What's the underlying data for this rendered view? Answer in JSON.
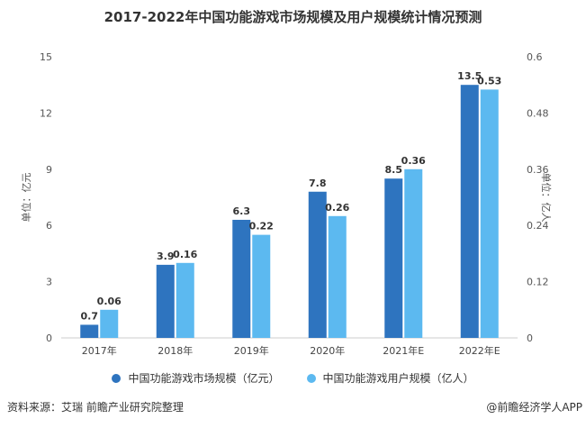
{
  "chart_data": {
    "type": "bar",
    "title": "2017-2022年中国功能游戏市场规模及用户规模统计情况预测",
    "categories": [
      "2017年",
      "2018年",
      "2019年",
      "2020年",
      "2021年E",
      "2022年E"
    ],
    "series": [
      {
        "name": "中国功能游戏市场规模（亿元）",
        "values": [
          0.7,
          3.9,
          6.3,
          7.8,
          8.5,
          13.5
        ],
        "labels": [
          "0.7",
          "3.9",
          "6.3",
          "7.8",
          "8.5",
          "13.5"
        ],
        "color": "#2e74bf",
        "axis": "left"
      },
      {
        "name": "中国功能游戏用户规模（亿人）",
        "values": [
          0.06,
          0.16,
          0.22,
          0.26,
          0.36,
          0.53
        ],
        "labels": [
          "0.06",
          "0.16",
          "0.22",
          "0.26",
          "0.36",
          "0.53"
        ],
        "color": "#5cb9f0",
        "axis": "right"
      }
    ],
    "ylabel": "单位：亿元",
    "y2label": "单位：亿人",
    "ylim": [
      0,
      15
    ],
    "y2lim": [
      0,
      0.6
    ],
    "yticks": [
      "0",
      "3",
      "6",
      "9",
      "12",
      "15"
    ],
    "y2ticks": [
      "0",
      "0.12",
      "0.24",
      "0.36",
      "0.48",
      "0.6"
    ],
    "legend": "bottom"
  },
  "source": "资料来源：艾瑞 前瞻产业研究院整理",
  "credit": "@前瞻经济学人APP"
}
